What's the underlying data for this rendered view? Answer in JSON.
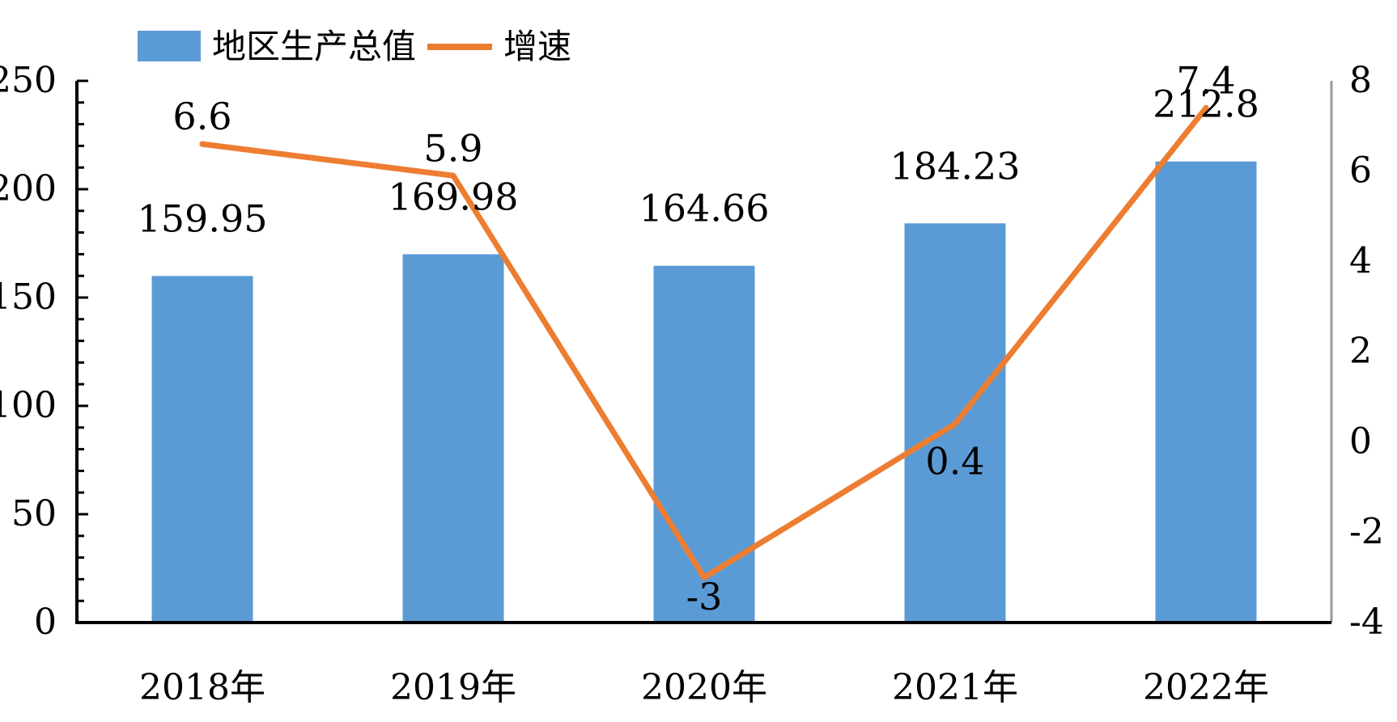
{
  "chart_data": {
    "type": "bar",
    "categories": [
      "2018年",
      "2019年",
      "2020年",
      "2021年",
      "2022年"
    ],
    "series": [
      {
        "name": "地区生产总值",
        "type": "bar",
        "axis": "left",
        "values": [
          159.95,
          169.98,
          164.66,
          184.23,
          212.8
        ],
        "labels": [
          "159.95",
          "169.98",
          "164.66",
          "184.23",
          "212.8"
        ],
        "color": "#5B9BD5"
      },
      {
        "name": "增速",
        "type": "line",
        "axis": "right",
        "values": [
          6.6,
          5.9,
          -3,
          0.4,
          7.4
        ],
        "labels": [
          "6.6",
          "5.9",
          "-3",
          "0.4",
          "7.4"
        ],
        "color": "#ED7D31"
      }
    ],
    "y_left": {
      "min": 0,
      "max": 250,
      "ticks": [
        "0",
        "50",
        "100",
        "150",
        "200",
        "250"
      ]
    },
    "y_right": {
      "min": -4,
      "max": 8,
      "ticks": [
        "-4",
        "-2",
        "0",
        "2",
        "4",
        "6",
        "8"
      ]
    },
    "legend": {
      "position": "top-left"
    },
    "grid": false,
    "title": "",
    "xlabel": "",
    "ylabel": ""
  }
}
